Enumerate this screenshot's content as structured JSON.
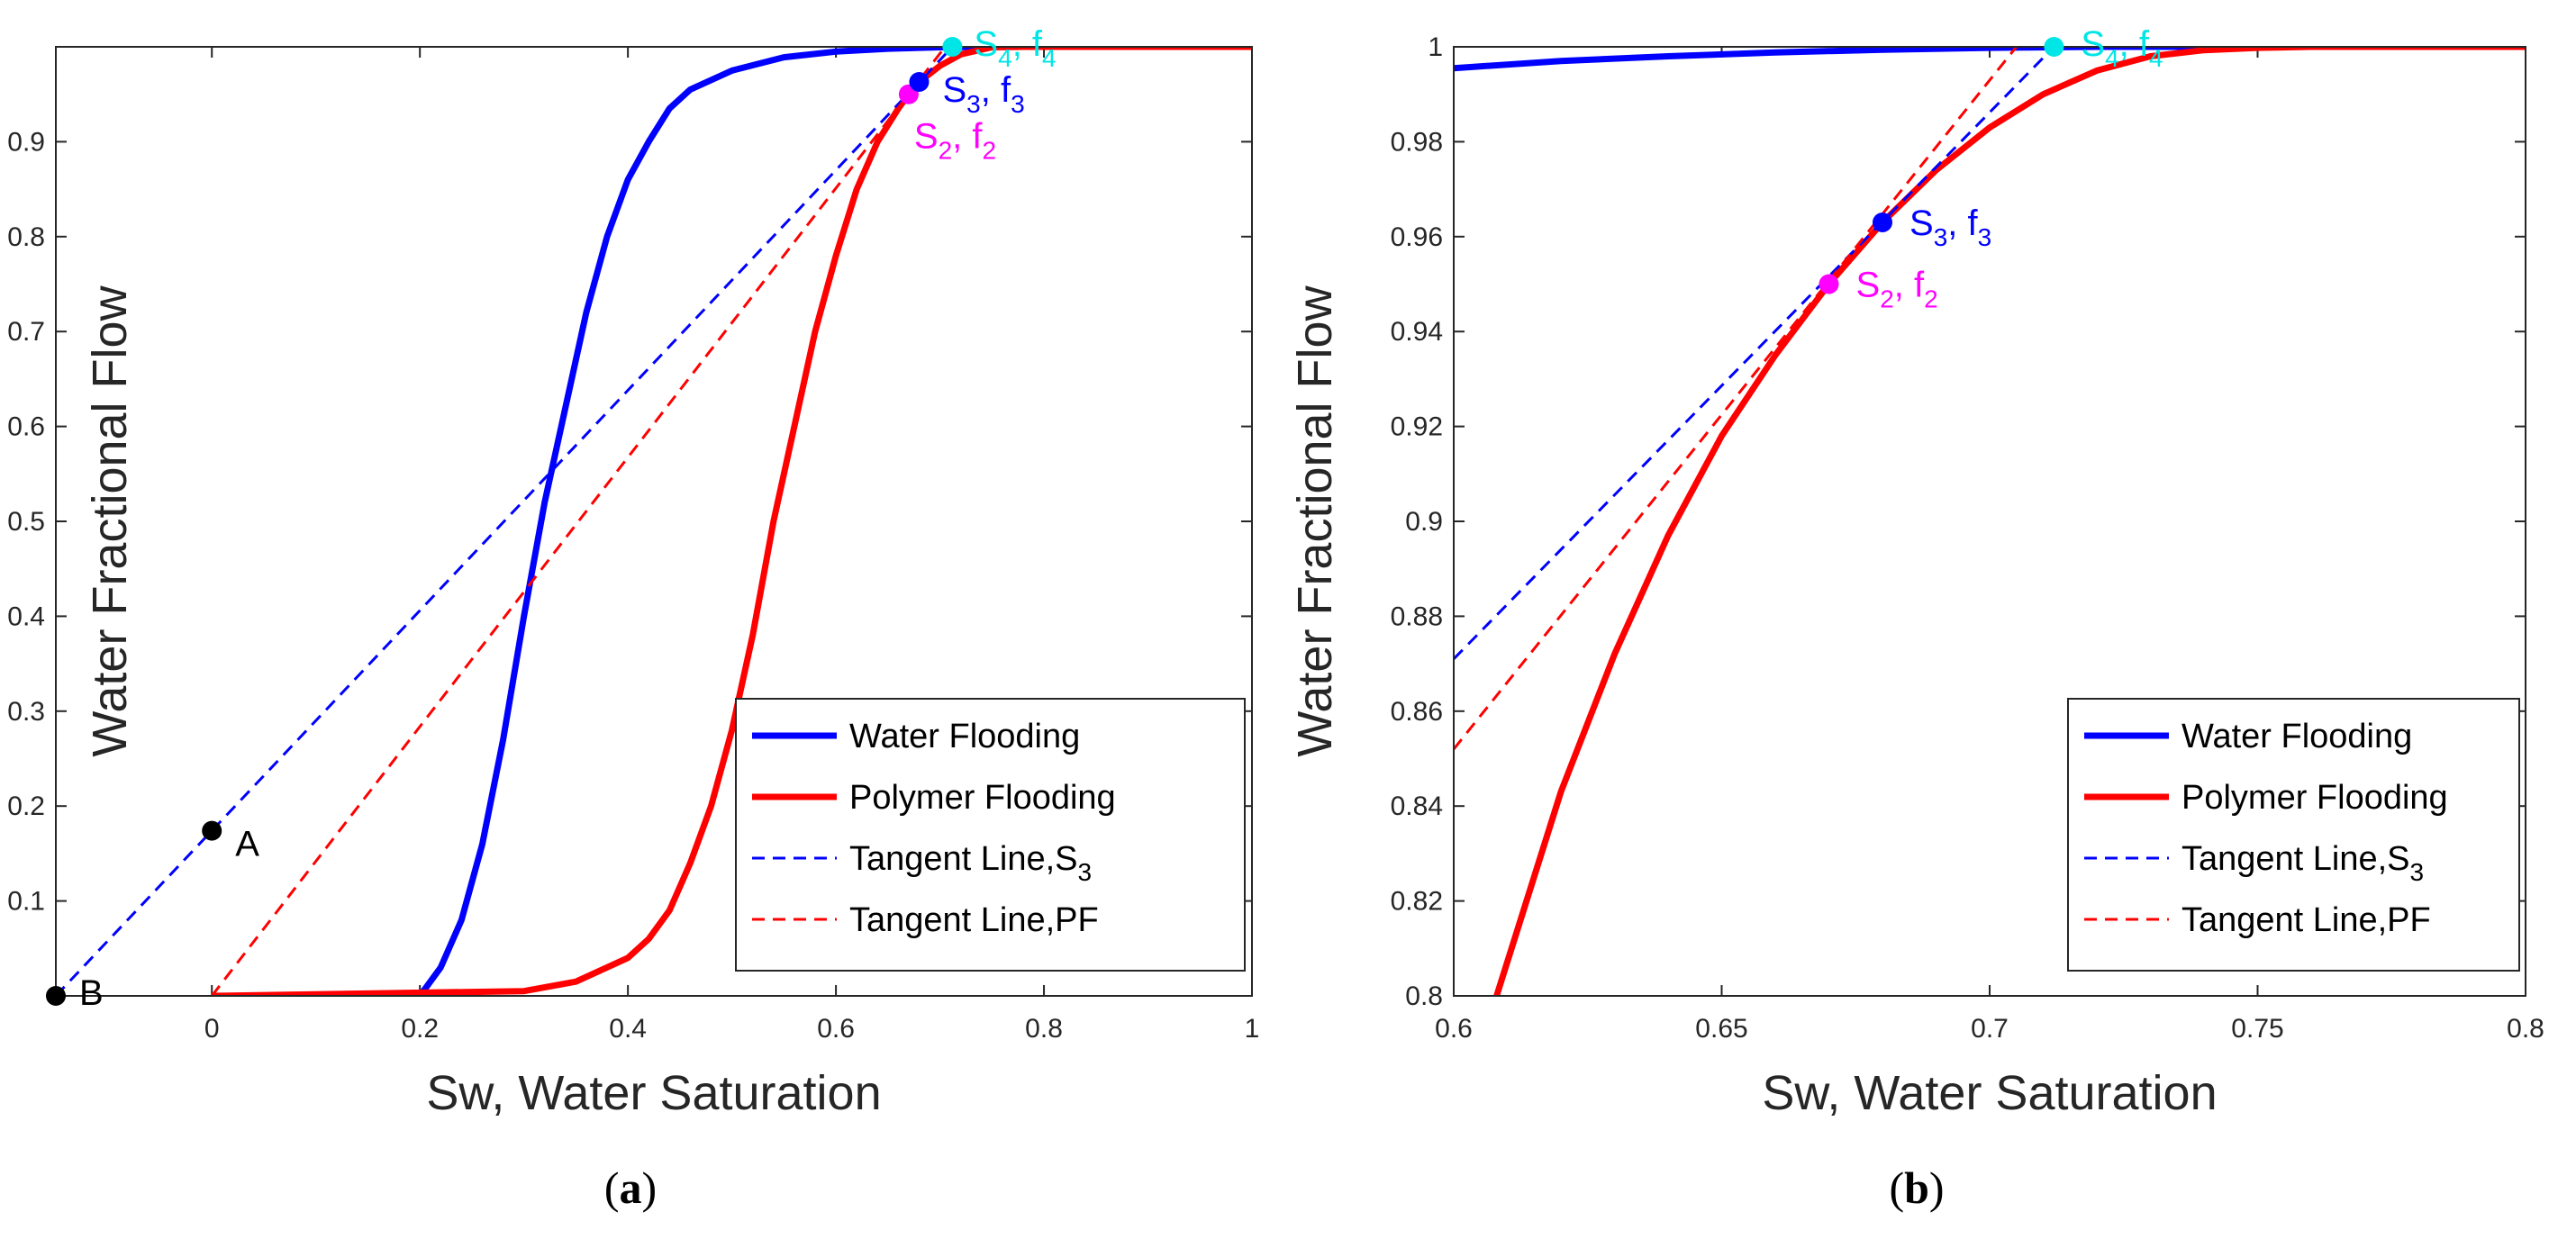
{
  "colors": {
    "water": "#0000ff",
    "polymer": "#ff0000",
    "tangent_s3": "#0000ff",
    "tangent_pf": "#ff0000",
    "s2": "#ff00ff",
    "s3": "#0000ff",
    "s4": "#00e5e5",
    "black": "#000000"
  },
  "chart_data": [
    {
      "type": "line",
      "panel": "a",
      "caption_open": "(",
      "caption_letter": "a",
      "caption_close": ")",
      "xlabel": "Sw, Water Saturation",
      "ylabel": "Water Fractional Flow",
      "xlim": [
        -0.15,
        1.0
      ],
      "ylim": [
        0,
        1.0
      ],
      "xticks": [
        0,
        0.2,
        0.4,
        0.6,
        0.8,
        1
      ],
      "xtick_labels": [
        "0",
        "0.2",
        "0.4",
        "0.6",
        "0.8",
        "1"
      ],
      "yticks": [
        0.1,
        0.2,
        0.3,
        0.4,
        0.5,
        0.6,
        0.7,
        0.8,
        0.9
      ],
      "ytick_labels": [
        "0.1",
        "0.2",
        "0.3",
        "0.4",
        "0.5",
        "0.6",
        "0.7",
        "0.8",
        "0.9"
      ],
      "series": [
        {
          "name": "Water Flooding",
          "style": "solid",
          "color_key": "water",
          "x": [
            0,
            0.2,
            0.22,
            0.24,
            0.26,
            0.28,
            0.3,
            0.32,
            0.34,
            0.36,
            0.38,
            0.4,
            0.42,
            0.44,
            0.46,
            0.5,
            0.55,
            0.6,
            0.65,
            0.7,
            0.75,
            0.8,
            1.0
          ],
          "y": [
            0,
            0.0,
            0.03,
            0.08,
            0.16,
            0.27,
            0.4,
            0.52,
            0.62,
            0.72,
            0.8,
            0.86,
            0.9,
            0.935,
            0.955,
            0.975,
            0.989,
            0.995,
            0.998,
            0.9995,
            1.0,
            1.0,
            1.0
          ]
        },
        {
          "name": "Polymer Flooding",
          "style": "solid",
          "color_key": "polymer",
          "x": [
            0,
            0.3,
            0.35,
            0.4,
            0.42,
            0.44,
            0.46,
            0.48,
            0.5,
            0.52,
            0.54,
            0.56,
            0.58,
            0.6,
            0.62,
            0.64,
            0.66,
            0.67,
            0.68,
            0.7,
            0.72,
            0.75,
            0.78,
            1.0
          ],
          "y": [
            0,
            0.005,
            0.015,
            0.04,
            0.06,
            0.09,
            0.14,
            0.2,
            0.28,
            0.38,
            0.5,
            0.6,
            0.7,
            0.78,
            0.85,
            0.9,
            0.935,
            0.95,
            0.963,
            0.98,
            0.992,
            0.9995,
            1.0,
            1.0
          ]
        },
        {
          "name": "Tangent Line,S3",
          "label_main": "Tangent Line,S",
          "label_sub": "3",
          "style": "dashed",
          "color_key": "tangent_s3",
          "x": [
            -0.15,
            0.712
          ],
          "y": [
            0.0,
            1.0
          ]
        },
        {
          "name": "Tangent Line,PF",
          "style": "dashed",
          "color_key": "tangent_pf",
          "x": [
            0,
            0.705
          ],
          "y": [
            0.0,
            1.0
          ]
        }
      ],
      "points": [
        {
          "label": "A",
          "x": 0.0,
          "y": 0.174,
          "color_key": "black"
        },
        {
          "label": "B",
          "x": -0.15,
          "y": 0.0,
          "color_key": "black"
        },
        {
          "label_main": "S",
          "label_sub": "2",
          "label_sep": ", f",
          "label_sub2": "2",
          "x": 0.67,
          "y": 0.95,
          "color_key": "s2"
        },
        {
          "label_main": "S",
          "label_sub": "3",
          "label_sep": ", f",
          "label_sub2": "3",
          "x": 0.68,
          "y": 0.963,
          "color_key": "s3"
        },
        {
          "label_main": "S",
          "label_sub": "4",
          "label_sep": ", f",
          "label_sub2": "4",
          "x": 0.712,
          "y": 1.0,
          "color_key": "s4"
        }
      ],
      "legend_position": "bottom-right"
    },
    {
      "type": "line",
      "panel": "b",
      "caption_open": "(",
      "caption_letter": "b",
      "caption_close": ")",
      "xlabel": "Sw, Water Saturation",
      "ylabel": "Water Fractional Flow",
      "xlim": [
        0.6,
        0.8
      ],
      "ylim": [
        0.8,
        1.0
      ],
      "xticks": [
        0.6,
        0.65,
        0.7,
        0.75,
        0.8
      ],
      "xtick_labels": [
        "0.6",
        "0.65",
        "0.7",
        "0.75",
        "0.8"
      ],
      "yticks": [
        0.8,
        0.82,
        0.84,
        0.86,
        0.88,
        0.9,
        0.92,
        0.94,
        0.96,
        0.98,
        1
      ],
      "ytick_labels": [
        "0.8",
        "0.82",
        "0.84",
        "0.86",
        "0.88",
        "0.9",
        "0.92",
        "0.94",
        "0.96",
        "0.98",
        "1"
      ],
      "series": [
        {
          "name": "Water Flooding",
          "style": "solid",
          "color_key": "water",
          "x": [
            0.6,
            0.62,
            0.64,
            0.66,
            0.68,
            0.7,
            0.72,
            0.75,
            0.8
          ],
          "y": [
            0.9955,
            0.997,
            0.998,
            0.9988,
            0.9994,
            0.9998,
            1.0,
            1.0,
            1.0
          ]
        },
        {
          "name": "Polymer Flooding",
          "style": "solid",
          "color_key": "polymer",
          "x": [
            0.608,
            0.62,
            0.63,
            0.64,
            0.65,
            0.66,
            0.67,
            0.68,
            0.69,
            0.7,
            0.71,
            0.72,
            0.73,
            0.74,
            0.75,
            0.76,
            0.8
          ],
          "y": [
            0.8,
            0.843,
            0.872,
            0.897,
            0.918,
            0.935,
            0.95,
            0.963,
            0.974,
            0.983,
            0.99,
            0.995,
            0.998,
            0.9993,
            0.9998,
            1.0,
            1.0
          ]
        },
        {
          "name": "Tangent Line,S3",
          "label_main": "Tangent Line,S",
          "label_sub": "3",
          "style": "dashed",
          "color_key": "tangent_s3",
          "x": [
            0.6,
            0.712
          ],
          "y": [
            0.871,
            1.0
          ]
        },
        {
          "name": "Tangent Line,PF",
          "style": "dashed",
          "color_key": "tangent_pf",
          "x": [
            0.6,
            0.705
          ],
          "y": [
            0.852,
            1.0
          ]
        }
      ],
      "points": [
        {
          "label_main": "S",
          "label_sub": "2",
          "label_sep": ", f",
          "label_sub2": "2",
          "x": 0.67,
          "y": 0.95,
          "color_key": "s2"
        },
        {
          "label_main": "S",
          "label_sub": "3",
          "label_sep": ", f",
          "label_sub2": "3",
          "x": 0.68,
          "y": 0.963,
          "color_key": "s3"
        },
        {
          "label_main": "S",
          "label_sub": "4",
          "label_sep": ", f",
          "label_sub2": "4",
          "x": 0.712,
          "y": 1.0,
          "color_key": "s4"
        }
      ],
      "legend_position": "bottom-right"
    }
  ]
}
